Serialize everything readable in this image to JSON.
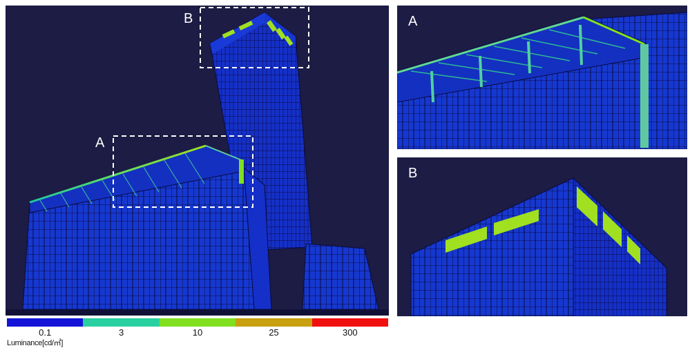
{
  "labels": {
    "A": "A",
    "B": "B"
  },
  "legend": {
    "title": "Luminance[cd/㎡]",
    "stops": [
      {
        "label": "0.1",
        "color": "#1414d8"
      },
      {
        "label": "3",
        "color": "#28d0a0"
      },
      {
        "label": "10",
        "color": "#80e020"
      },
      {
        "label": "25",
        "color": "#c8a010"
      },
      {
        "label": "300",
        "color": "#f01010"
      }
    ]
  },
  "colors": {
    "background": "#1c1c44",
    "building": "#1530c8",
    "edge": "#0a0a40",
    "highlight": "#a0e020"
  }
}
